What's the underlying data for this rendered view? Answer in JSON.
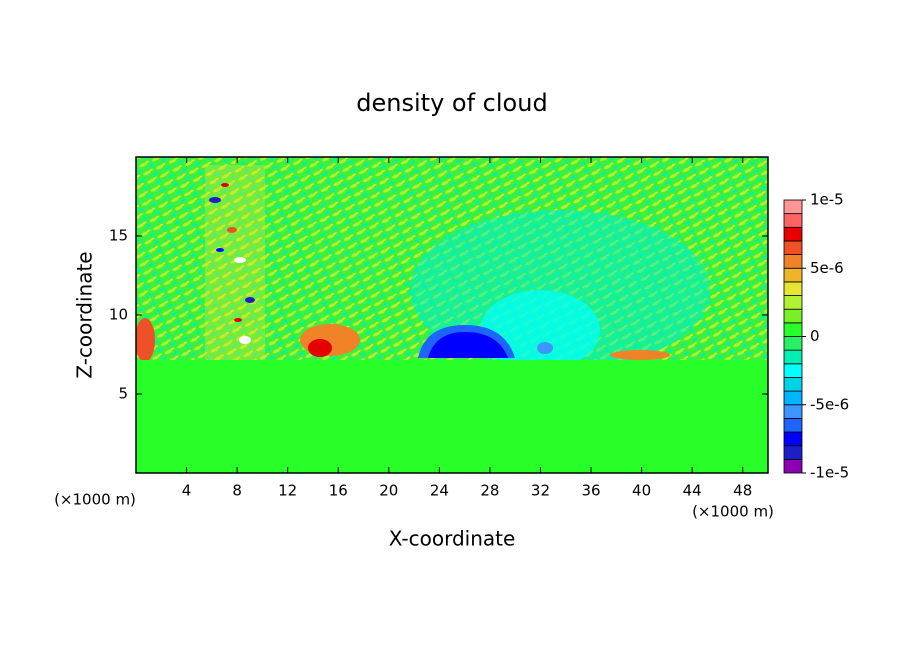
{
  "chart_data": {
    "type": "heatmap",
    "title": "density of cloud",
    "x_label": "X-coordinate",
    "y_label": "Z-coordinate",
    "x_unit": "(×1000 m)",
    "y_unit": "(×1000 m)",
    "xlim": [
      0,
      50
    ],
    "xticks": [
      4,
      8,
      12,
      16,
      20,
      24,
      28,
      32,
      36,
      40,
      44,
      48
    ],
    "ylim": [
      0,
      20
    ],
    "yticks": [
      5,
      10,
      15
    ],
    "colorbar": {
      "levels": [
        -1e-05,
        -9e-06,
        -8e-06,
        -7e-06,
        -6e-06,
        -5e-06,
        -4e-06,
        -3e-06,
        -2e-06,
        -1e-06,
        0,
        1e-06,
        2e-06,
        3e-06,
        4e-06,
        5e-06,
        6e-06,
        7e-06,
        8e-06,
        9e-06,
        1e-05
      ],
      "colors": [
        "#8c00b4",
        "#1e1ec8",
        "#0000ff",
        "#1e64ff",
        "#3c96ff",
        "#00b4ff",
        "#00d2e6",
        "#00ffff",
        "#00f0b4",
        "#28f064",
        "#28ff28",
        "#78f028",
        "#b4f032",
        "#e6e632",
        "#f0b428",
        "#f08228",
        "#f05028",
        "#e60000",
        "#ff6464",
        "#ff9696"
      ],
      "ticks": [
        {
          "value": 1e-05,
          "label": "1e-5"
        },
        {
          "value": 5e-06,
          "label": "5e-6"
        },
        {
          "value": 0,
          "label": "0"
        },
        {
          "value": -5e-06,
          "label": "-5e-6"
        },
        {
          "value": -1e-05,
          "label": "-1e-5"
        }
      ]
    }
  }
}
